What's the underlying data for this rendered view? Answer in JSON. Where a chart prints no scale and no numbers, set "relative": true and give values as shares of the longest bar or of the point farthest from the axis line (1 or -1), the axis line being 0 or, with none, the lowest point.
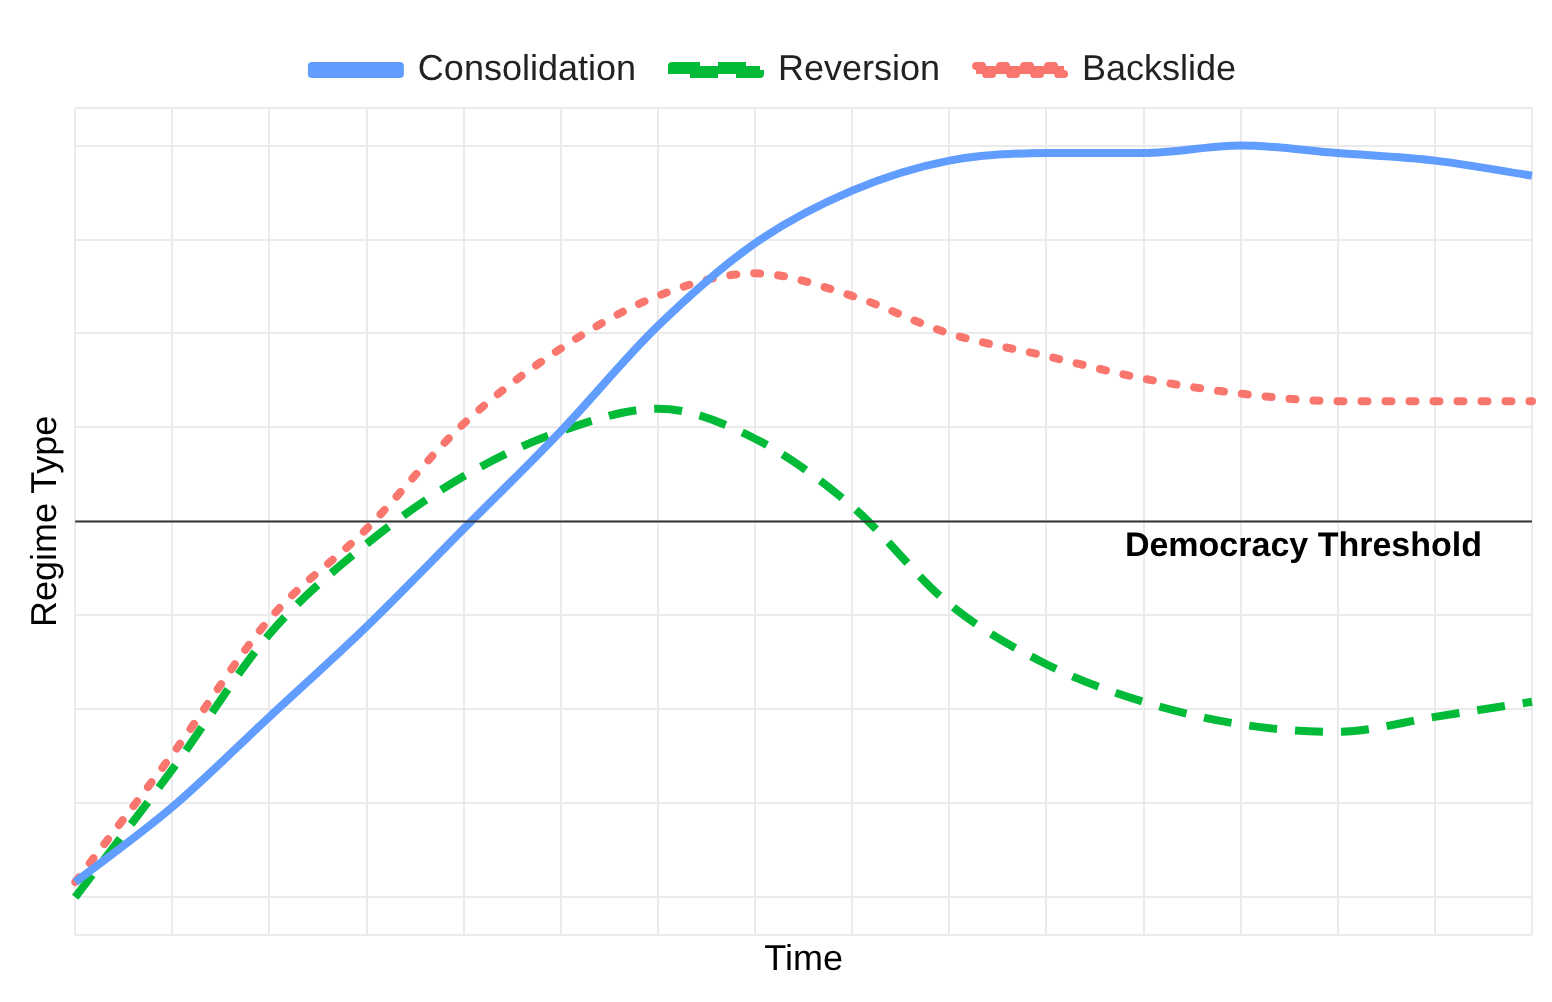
{
  "chart_data": {
    "type": "line",
    "relative": true,
    "xlabel": "Time",
    "ylabel": "Regime Type",
    "categories": [
      null,
      null,
      null,
      null,
      null,
      null,
      null,
      null,
      null,
      null,
      null,
      null,
      null,
      null,
      null,
      null
    ],
    "series": [
      {
        "name": "Consolidation",
        "color": "#619cff",
        "line_style": "solid",
        "values": [
          0.02,
          0.12,
          0.24,
          0.36,
          0.49,
          0.62,
          0.76,
          0.87,
          0.94,
          0.98,
          0.99,
          0.99,
          1.0,
          0.99,
          0.98,
          0.96
        ]
      },
      {
        "name": "Reversion",
        "color": "#00ba38",
        "line_style": "dashed",
        "values": [
          0.0,
          0.17,
          0.35,
          0.47,
          0.56,
          0.62,
          0.65,
          0.61,
          0.52,
          0.39,
          0.31,
          0.26,
          0.23,
          0.22,
          0.24,
          0.26
        ]
      },
      {
        "name": "Backslide",
        "color": "#f8766d",
        "line_style": "dotted",
        "values": [
          0.02,
          0.19,
          0.37,
          0.49,
          0.63,
          0.73,
          0.8,
          0.83,
          0.8,
          0.75,
          0.72,
          0.69,
          0.67,
          0.66,
          0.66,
          0.66
        ]
      }
    ],
    "ref_lines": [
      {
        "axis": "y",
        "value": 0.5,
        "label": "Democracy Threshold",
        "color": "#333333"
      }
    ],
    "grid": true,
    "legend": "top",
    "marker": "none"
  }
}
